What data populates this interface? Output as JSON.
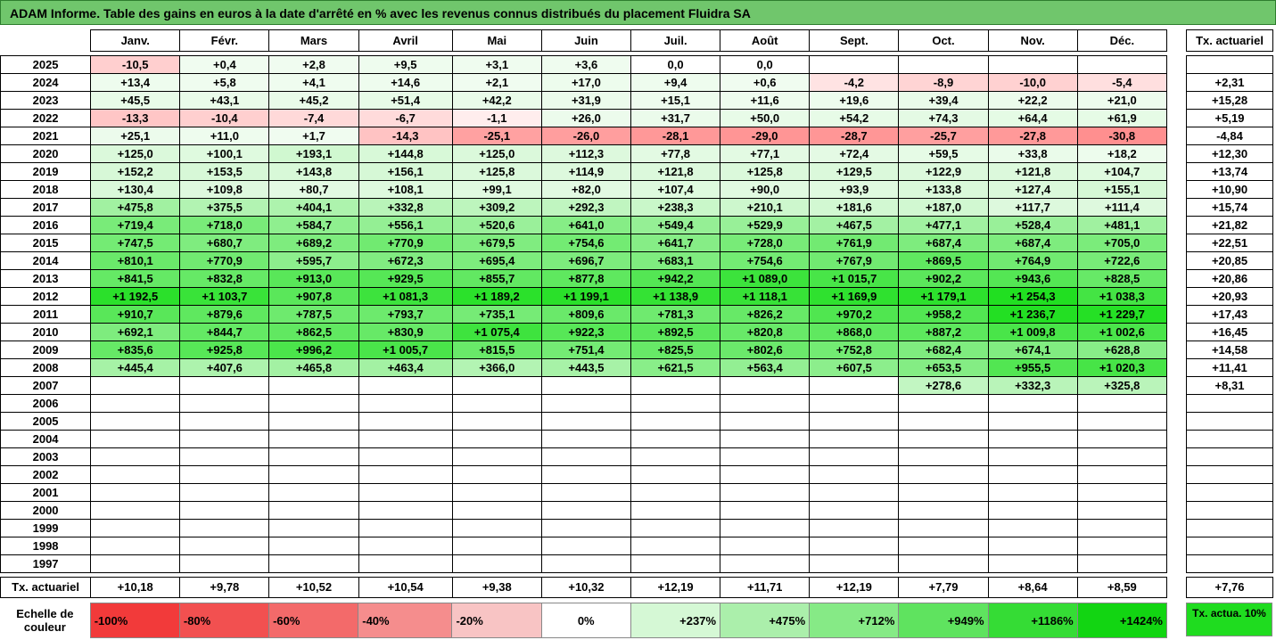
{
  "title": "ADAM Informe. Table des gains en euros à la date d'arrêté en % avec les revenus connus distribués du placement Fluidra SA",
  "months": [
    "Janv.",
    "Févr.",
    "Mars",
    "Avril",
    "Mai",
    "Juin",
    "Juil.",
    "Août",
    "Sept.",
    "Oct.",
    "Nov.",
    "Déc."
  ],
  "tx_header": "Tx. actuariel",
  "rows": [
    {
      "year": "2025",
      "v": [
        "-10,5",
        "+0,4",
        "+2,8",
        "+9,5",
        "+3,1",
        "+3,6",
        "0,0",
        "0,0",
        "",
        "",
        "",
        ""
      ],
      "tx": ""
    },
    {
      "year": "2024",
      "v": [
        "+13,4",
        "+5,8",
        "+4,1",
        "+14,6",
        "+2,1",
        "+17,0",
        "+9,4",
        "+0,6",
        "-4,2",
        "-8,9",
        "-10,0",
        "-5,4"
      ],
      "tx": "+2,31"
    },
    {
      "year": "2023",
      "v": [
        "+45,5",
        "+43,1",
        "+45,2",
        "+51,4",
        "+42,2",
        "+31,9",
        "+15,1",
        "+11,6",
        "+19,6",
        "+39,4",
        "+22,2",
        "+21,0"
      ],
      "tx": "+15,28"
    },
    {
      "year": "2022",
      "v": [
        "-13,3",
        "-10,4",
        "-7,4",
        "-6,7",
        "-1,1",
        "+26,0",
        "+31,7",
        "+50,0",
        "+54,2",
        "+74,3",
        "+64,4",
        "+61,9"
      ],
      "tx": "+5,19"
    },
    {
      "year": "2021",
      "v": [
        "+25,1",
        "+11,0",
        "+1,7",
        "-14,3",
        "-25,1",
        "-26,0",
        "-28,1",
        "-29,0",
        "-28,7",
        "-25,7",
        "-27,8",
        "-30,8"
      ],
      "tx": "-4,84"
    },
    {
      "year": "2020",
      "v": [
        "+125,0",
        "+100,1",
        "+193,1",
        "+144,8",
        "+125,0",
        "+112,3",
        "+77,8",
        "+77,1",
        "+72,4",
        "+59,5",
        "+33,8",
        "+18,2"
      ],
      "tx": "+12,30"
    },
    {
      "year": "2019",
      "v": [
        "+152,2",
        "+153,5",
        "+143,8",
        "+156,1",
        "+125,8",
        "+114,9",
        "+121,8",
        "+125,8",
        "+129,5",
        "+122,9",
        "+121,8",
        "+104,7"
      ],
      "tx": "+13,74"
    },
    {
      "year": "2018",
      "v": [
        "+130,4",
        "+109,8",
        "+80,7",
        "+108,1",
        "+99,1",
        "+82,0",
        "+107,4",
        "+90,0",
        "+93,9",
        "+133,8",
        "+127,4",
        "+155,1"
      ],
      "tx": "+10,90"
    },
    {
      "year": "2017",
      "v": [
        "+475,8",
        "+375,5",
        "+404,1",
        "+332,8",
        "+309,2",
        "+292,3",
        "+238,3",
        "+210,1",
        "+181,6",
        "+187,0",
        "+117,7",
        "+111,4"
      ],
      "tx": "+15,74"
    },
    {
      "year": "2016",
      "v": [
        "+719,4",
        "+718,0",
        "+584,7",
        "+556,1",
        "+520,6",
        "+641,0",
        "+549,4",
        "+529,9",
        "+467,5",
        "+477,1",
        "+528,4",
        "+481,1"
      ],
      "tx": "+21,82"
    },
    {
      "year": "2015",
      "v": [
        "+747,5",
        "+680,7",
        "+689,2",
        "+770,9",
        "+679,5",
        "+754,6",
        "+641,7",
        "+728,0",
        "+761,9",
        "+687,4",
        "+687,4",
        "+705,0"
      ],
      "tx": "+22,51"
    },
    {
      "year": "2014",
      "v": [
        "+810,1",
        "+770,9",
        "+595,7",
        "+672,3",
        "+695,4",
        "+696,7",
        "+683,1",
        "+754,6",
        "+767,9",
        "+869,5",
        "+764,9",
        "+722,6"
      ],
      "tx": "+20,85"
    },
    {
      "year": "2013",
      "v": [
        "+841,5",
        "+832,8",
        "+913,0",
        "+929,5",
        "+855,7",
        "+877,8",
        "+942,2",
        "+1 089,0",
        "+1 015,7",
        "+902,2",
        "+943,6",
        "+828,5"
      ],
      "tx": "+20,86"
    },
    {
      "year": "2012",
      "v": [
        "+1 192,5",
        "+1 103,7",
        "+907,8",
        "+1 081,3",
        "+1 189,2",
        "+1 199,1",
        "+1 138,9",
        "+1 118,1",
        "+1 169,9",
        "+1 179,1",
        "+1 254,3",
        "+1 038,3"
      ],
      "tx": "+20,93"
    },
    {
      "year": "2011",
      "v": [
        "+910,7",
        "+879,6",
        "+787,5",
        "+793,7",
        "+735,1",
        "+809,6",
        "+781,3",
        "+826,2",
        "+970,2",
        "+958,2",
        "+1 236,7",
        "+1 229,7"
      ],
      "tx": "+17,43"
    },
    {
      "year": "2010",
      "v": [
        "+692,1",
        "+844,7",
        "+862,5",
        "+830,9",
        "+1 075,4",
        "+922,3",
        "+892,5",
        "+820,8",
        "+868,0",
        "+887,2",
        "+1 009,8",
        "+1 002,6"
      ],
      "tx": "+16,45"
    },
    {
      "year": "2009",
      "v": [
        "+835,6",
        "+925,8",
        "+996,2",
        "+1 005,7",
        "+815,5",
        "+751,4",
        "+825,5",
        "+802,6",
        "+752,8",
        "+682,4",
        "+674,1",
        "+628,8"
      ],
      "tx": "+14,58"
    },
    {
      "year": "2008",
      "v": [
        "+445,4",
        "+407,6",
        "+465,8",
        "+463,4",
        "+366,0",
        "+443,5",
        "+621,5",
        "+563,4",
        "+607,5",
        "+653,5",
        "+955,5",
        "+1 020,3"
      ],
      "tx": "+11,41"
    },
    {
      "year": "2007",
      "v": [
        "",
        "",
        "",
        "",
        "",
        "",
        "",
        "",
        "",
        "+278,6",
        "+332,3",
        "+325,8"
      ],
      "tx": "+8,31"
    },
    {
      "year": "2006",
      "v": [
        "",
        "",
        "",
        "",
        "",
        "",
        "",
        "",
        "",
        "",
        "",
        ""
      ],
      "tx": ""
    },
    {
      "year": "2005",
      "v": [
        "",
        "",
        "",
        "",
        "",
        "",
        "",
        "",
        "",
        "",
        "",
        ""
      ],
      "tx": ""
    },
    {
      "year": "2004",
      "v": [
        "",
        "",
        "",
        "",
        "",
        "",
        "",
        "",
        "",
        "",
        "",
        ""
      ],
      "tx": ""
    },
    {
      "year": "2003",
      "v": [
        "",
        "",
        "",
        "",
        "",
        "",
        "",
        "",
        "",
        "",
        "",
        ""
      ],
      "tx": ""
    },
    {
      "year": "2002",
      "v": [
        "",
        "",
        "",
        "",
        "",
        "",
        "",
        "",
        "",
        "",
        "",
        ""
      ],
      "tx": ""
    },
    {
      "year": "2001",
      "v": [
        "",
        "",
        "",
        "",
        "",
        "",
        "",
        "",
        "",
        "",
        "",
        ""
      ],
      "tx": ""
    },
    {
      "year": "2000",
      "v": [
        "",
        "",
        "",
        "",
        "",
        "",
        "",
        "",
        "",
        "",
        "",
        ""
      ],
      "tx": ""
    },
    {
      "year": "1999",
      "v": [
        "",
        "",
        "",
        "",
        "",
        "",
        "",
        "",
        "",
        "",
        "",
        ""
      ],
      "tx": ""
    },
    {
      "year": "1998",
      "v": [
        "",
        "",
        "",
        "",
        "",
        "",
        "",
        "",
        "",
        "",
        "",
        ""
      ],
      "tx": ""
    },
    {
      "year": "1997",
      "v": [
        "",
        "",
        "",
        "",
        "",
        "",
        "",
        "",
        "",
        "",
        "",
        ""
      ],
      "tx": ""
    }
  ],
  "footer": {
    "label": "Tx. actuariel",
    "v": [
      "+10,18",
      "+9,78",
      "+10,52",
      "+10,54",
      "+9,38",
      "+10,32",
      "+12,19",
      "+11,71",
      "+12,19",
      "+7,79",
      "+8,64",
      "+8,59"
    ],
    "tx": "+7,76"
  },
  "scale": {
    "label": "Echelle de couleur",
    "items": [
      {
        "text": "-100%",
        "color": "#f23a3a",
        "align": "left"
      },
      {
        "text": "-80%",
        "color": "#f25050",
        "align": "left"
      },
      {
        "text": "-60%",
        "color": "#f36a6a",
        "align": "left"
      },
      {
        "text": "-40%",
        "color": "#f58d8d",
        "align": "left"
      },
      {
        "text": "-20%",
        "color": "#f8c4c4",
        "align": "left"
      },
      {
        "text": "0%",
        "color": "#ffffff",
        "align": "center"
      },
      {
        "text": "+237%",
        "color": "#d5f8d5",
        "align": "right"
      },
      {
        "text": "+475%",
        "color": "#abefab",
        "align": "right"
      },
      {
        "text": "+712%",
        "color": "#86ea86",
        "align": "right"
      },
      {
        "text": "+949%",
        "color": "#5fe35f",
        "align": "right"
      },
      {
        "text": "+1186%",
        "color": "#35dc35",
        "align": "right"
      },
      {
        "text": "+1424%",
        "color": "#12d512",
        "align": "right"
      }
    ],
    "tx10": "Tx. actua. 10%"
  }
}
